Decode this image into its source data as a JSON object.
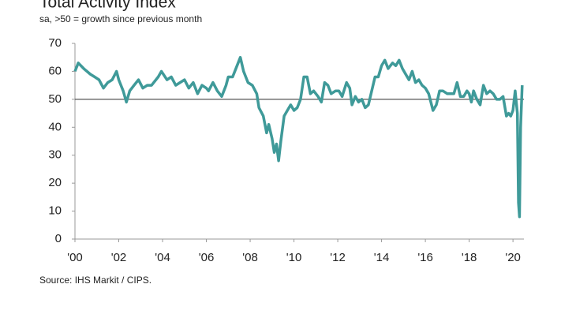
{
  "chart_data": {
    "type": "line",
    "title": "Total Activity Index",
    "subtitle": "sa, >50 = growth since previous month",
    "source": "Source: IHS Markit / CIPS.",
    "x": [
      2000.0,
      2000.15,
      2000.4,
      2000.7,
      2000.9,
      2001.1,
      2001.3,
      2001.5,
      2001.7,
      2001.9,
      2002.0,
      2002.2,
      2002.35,
      2002.5,
      2002.7,
      2002.9,
      2003.1,
      2003.3,
      2003.5,
      2003.8,
      2003.95,
      2004.2,
      2004.4,
      2004.6,
      2004.8,
      2005.0,
      2005.2,
      2005.4,
      2005.6,
      2005.8,
      2006.0,
      2006.1,
      2006.3,
      2006.5,
      2006.7,
      2006.9,
      2007.0,
      2007.2,
      2007.4,
      2007.55,
      2007.7,
      2007.9,
      2008.1,
      2008.3,
      2008.4,
      2008.6,
      2008.75,
      2008.85,
      2009.0,
      2009.1,
      2009.2,
      2009.3,
      2009.4,
      2009.55,
      2009.7,
      2009.85,
      2010.0,
      2010.15,
      2010.3,
      2010.45,
      2010.6,
      2010.75,
      2010.9,
      2011.1,
      2011.25,
      2011.4,
      2011.55,
      2011.7,
      2011.9,
      2012.05,
      2012.2,
      2012.4,
      2012.55,
      2012.65,
      2012.8,
      2012.95,
      2013.1,
      2013.25,
      2013.4,
      2013.55,
      2013.7,
      2013.85,
      2014.0,
      2014.15,
      2014.3,
      2014.5,
      2014.65,
      2014.8,
      2014.95,
      2015.1,
      2015.25,
      2015.4,
      2015.55,
      2015.7,
      2015.85,
      2016.0,
      2016.15,
      2016.35,
      2016.5,
      2016.65,
      2016.8,
      2017.0,
      2017.15,
      2017.3,
      2017.45,
      2017.6,
      2017.75,
      2017.9,
      2018.0,
      2018.1,
      2018.2,
      2018.35,
      2018.5,
      2018.65,
      2018.8,
      2018.95,
      2019.1,
      2019.25,
      2019.4,
      2019.55,
      2019.7,
      2019.8,
      2019.9,
      2020.0,
      2020.1,
      2020.2,
      2020.25,
      2020.3,
      2020.35,
      2020.42
    ],
    "series": [
      {
        "name": "Total Activity Index",
        "color": "#3f9a99",
        "values": [
          60,
          63,
          61,
          59,
          58,
          57,
          54,
          56,
          57,
          60,
          57,
          53,
          49,
          53,
          55,
          57,
          54,
          55,
          55,
          58,
          60,
          57,
          58,
          55,
          56,
          57,
          54,
          56,
          52,
          55,
          54,
          53,
          56,
          53,
          51,
          55,
          58,
          58,
          62,
          65,
          60,
          56,
          55,
          52,
          47,
          44,
          38,
          41,
          36,
          31,
          34,
          28,
          35,
          44,
          46,
          48,
          46,
          47,
          50,
          58,
          58,
          52,
          53,
          51,
          49,
          56,
          55,
          52,
          53,
          53,
          51,
          56,
          54,
          48,
          51,
          49,
          50,
          47,
          48,
          53,
          58,
          58,
          62,
          64,
          61,
          63,
          62,
          64,
          61,
          59,
          57,
          60,
          56,
          57,
          55,
          54,
          52,
          46,
          48,
          53,
          53,
          52,
          52,
          52,
          56,
          51,
          51,
          53,
          52,
          49,
          53,
          50,
          48,
          55,
          52,
          53,
          52,
          50,
          50,
          51,
          44,
          45,
          44,
          46,
          53,
          45,
          13,
          8,
          40,
          55
        ]
      }
    ],
    "hline": 50,
    "xlim": [
      2000,
      2020.5
    ],
    "xticks": [
      {
        "value": 2000,
        "label": "'00"
      },
      {
        "value": 2002,
        "label": "'02"
      },
      {
        "value": 2004,
        "label": "'04"
      },
      {
        "value": 2006,
        "label": "'06"
      },
      {
        "value": 2008,
        "label": "'08"
      },
      {
        "value": 2010,
        "label": "'10"
      },
      {
        "value": 2012,
        "label": "'12"
      },
      {
        "value": 2014,
        "label": "'14"
      },
      {
        "value": 2016,
        "label": "'16"
      },
      {
        "value": 2018,
        "label": "'18"
      },
      {
        "value": 2020,
        "label": "'20"
      }
    ],
    "ylim": [
      0,
      70
    ],
    "yticks": [
      0,
      10,
      20,
      30,
      40,
      50,
      60,
      70
    ],
    "grid": false
  }
}
